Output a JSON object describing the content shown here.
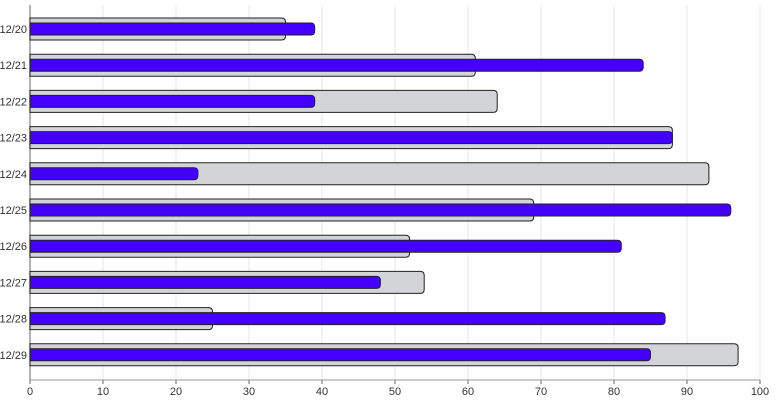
{
  "chart_data": {
    "type": "bar",
    "orientation": "horizontal",
    "categories": [
      "12/20",
      "12/21",
      "12/22",
      "12/23",
      "12/24",
      "12/25",
      "12/26",
      "12/27",
      "12/28",
      "12/29"
    ],
    "series": [
      {
        "values": [
          35,
          61,
          64,
          88,
          93,
          69,
          52,
          54,
          25,
          97
        ],
        "color": "#d3d4d8"
      },
      {
        "values": [
          39,
          84,
          39,
          88,
          23,
          96,
          81,
          48,
          87,
          85
        ],
        "color": "#4400ff"
      }
    ],
    "xlim": [
      0,
      100
    ],
    "xticks": [
      "0",
      "10",
      "20",
      "30",
      "40",
      "50",
      "60",
      "70",
      "80",
      "90",
      "100"
    ],
    "grid": true,
    "title": "",
    "xlabel": "",
    "ylabel": ""
  }
}
